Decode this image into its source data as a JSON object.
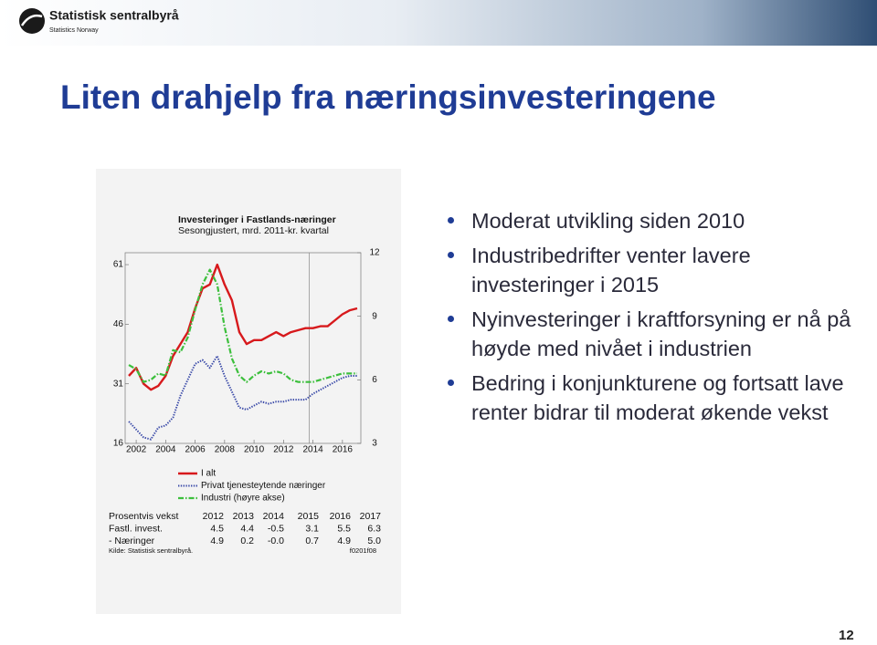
{
  "header": {
    "logo_name": "Statistisk sentralbyrå",
    "logo_sub": "Statistics Norway"
  },
  "title": "Liten drahjelp fra næringsinvesteringene",
  "bullets": [
    "Moderat utvikling siden 2010",
    "Industribedrifter venter lavere investeringer i 2015",
    "Nyinvesteringer i kraftforsyning er nå på høyde med nivået i industrien",
    "Bedring i konjunkturene og fortsatt lave renter bidrar til moderat økende vekst"
  ],
  "page_number": "12",
  "chart_data": {
    "type": "line",
    "title": "Investeringer i Fastlands-næringer",
    "subtitle": "Sesongjustert, mrd. 2011-kr. kvartal",
    "x": [
      2001.5,
      2002,
      2002.5,
      2003,
      2003.5,
      2004,
      2004.5,
      2005,
      2005.5,
      2006,
      2006.5,
      2007,
      2007.5,
      2008,
      2008.5,
      2009,
      2009.5,
      2010,
      2010.5,
      2011,
      2011.5,
      2012,
      2012.5,
      2013,
      2013.5,
      2014,
      2014.5,
      2015,
      2015.5,
      2016,
      2016.5,
      2017
    ],
    "xlim": [
      2001.25,
      2017.25
    ],
    "xticks": [
      2002,
      2004,
      2006,
      2008,
      2010,
      2012,
      2014,
      2016
    ],
    "ylim": [
      16,
      64
    ],
    "yticks": [
      16,
      31,
      46,
      61
    ],
    "y2lim": [
      3,
      12
    ],
    "y2ticks": [
      3,
      6,
      9,
      12
    ],
    "divider_x": 2013.75,
    "series": [
      {
        "name": "I alt",
        "color": "#d7191c",
        "style": "solid",
        "values": [
          33,
          35,
          31,
          29.5,
          30.5,
          33,
          38,
          41,
          44,
          50,
          55,
          56,
          61,
          56,
          52,
          44,
          41,
          42,
          42,
          43,
          44,
          43,
          44,
          44.5,
          45,
          45,
          45.5,
          45.5,
          47,
          48.5,
          49.5,
          50
        ]
      },
      {
        "name": "Privat tjenesteytende næringer",
        "color": "#3a4aa8",
        "style": "dotted",
        "values": [
          21.5,
          19.5,
          17.5,
          17,
          20,
          20.5,
          22.5,
          28,
          32,
          36,
          37,
          35,
          38,
          33,
          29,
          25,
          24.5,
          25.5,
          26.5,
          26,
          26.5,
          26.5,
          27,
          27,
          27,
          28.5,
          29.5,
          30.5,
          31.5,
          32.5,
          33,
          33
        ]
      },
      {
        "name": "Industri (høyre akse)",
        "color": "#3cbf3c",
        "style": "dashdot",
        "axis": "y2",
        "values": [
          6.7,
          6.5,
          5.9,
          6,
          6.3,
          6.2,
          7.4,
          7.3,
          8,
          9.3,
          10.5,
          11.2,
          10.5,
          8.5,
          7,
          6.2,
          5.9,
          6.2,
          6.4,
          6.3,
          6.4,
          6.3,
          6,
          5.9,
          5.9,
          5.9,
          6,
          6.1,
          6.2,
          6.3,
          6.3,
          6.3
        ]
      }
    ],
    "table": {
      "header": [
        "Prosentvis vekst",
        "2012",
        "2013",
        "2014",
        "2015",
        "2016",
        "2017"
      ],
      "rows": [
        [
          "Fastl. invest.",
          "4.5",
          "4.4",
          "-0.5",
          "3.1",
          "5.5",
          "6.3"
        ],
        [
          "- Næringer",
          "4.9",
          "0.2",
          "-0.0",
          "0.7",
          "4.9",
          "5.0"
        ]
      ]
    },
    "source": "Kilde: Statistisk sentralbyrå.",
    "code": "f0201f08"
  }
}
